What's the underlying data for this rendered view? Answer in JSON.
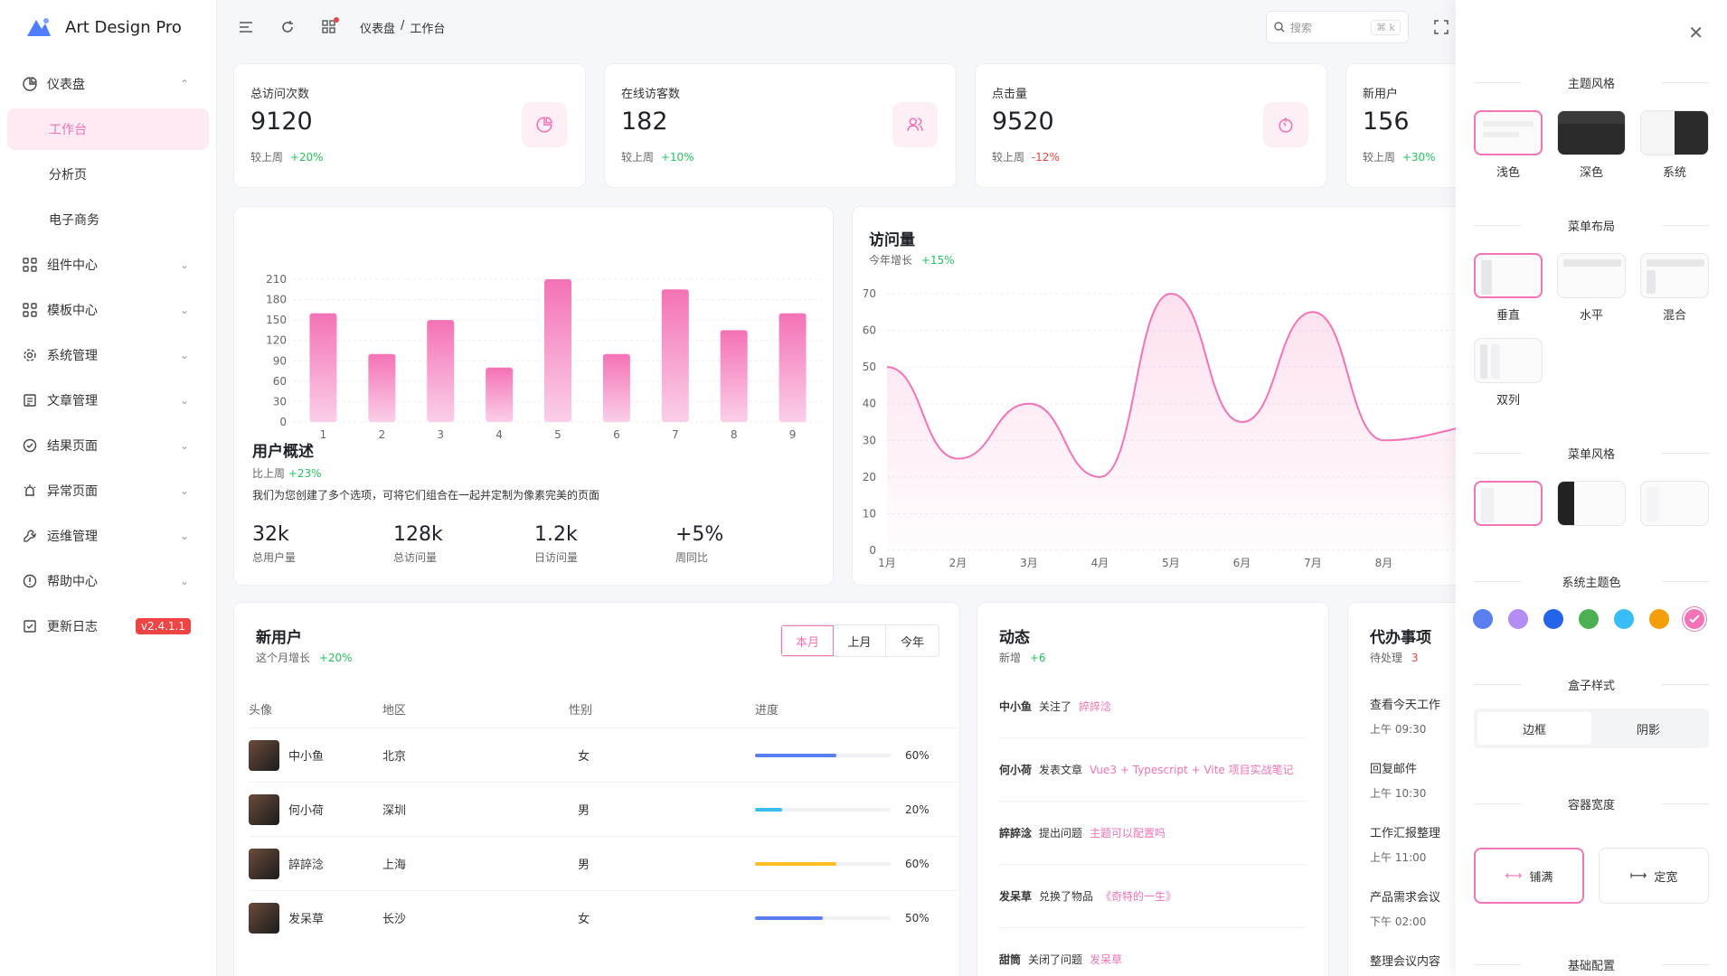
{
  "app": {
    "name": "Art Design Pro"
  },
  "sidebar": {
    "items": [
      {
        "label": "仪表盘",
        "icon": "dashboard-icon",
        "arrow": "⌃"
      },
      {
        "label": "工作台",
        "sub": true,
        "active": true
      },
      {
        "label": "分析页",
        "sub": true
      },
      {
        "label": "电子商务",
        "sub": true
      },
      {
        "label": "组件中心",
        "icon": "grid-icon",
        "arrow": "⌄"
      },
      {
        "label": "模板中心",
        "icon": "grid-icon",
        "arrow": "⌄"
      },
      {
        "label": "系统管理",
        "icon": "gear-icon",
        "arrow": "⌄"
      },
      {
        "label": "文章管理",
        "icon": "article-icon",
        "arrow": "⌄"
      },
      {
        "label": "结果页面",
        "icon": "check-circle-icon",
        "arrow": "⌄"
      },
      {
        "label": "异常页面",
        "icon": "alarm-icon",
        "arrow": "⌄"
      },
      {
        "label": "运维管理",
        "icon": "wrench-icon",
        "arrow": "⌄"
      },
      {
        "label": "帮助中心",
        "icon": "info-icon",
        "arrow": "⌄"
      },
      {
        "label": "更新日志",
        "icon": "log-icon",
        "badge": "v2.4.1.1"
      }
    ]
  },
  "topbar": {
    "breadcrumb": [
      "仪表盘",
      "/",
      "工作台"
    ],
    "search_placeholder": "搜索",
    "search_shortcut": "⌘ k"
  },
  "stats": [
    {
      "label": "总访问次数",
      "value": "9120",
      "foot": "较上周",
      "change": "+20%",
      "trend": "up"
    },
    {
      "label": "在线访客数",
      "value": "182",
      "foot": "较上周",
      "change": "+10%",
      "trend": "up"
    },
    {
      "label": "点击量",
      "value": "9520",
      "foot": "较上周",
      "change": "-12%",
      "trend": "down"
    },
    {
      "label": "新用户",
      "value": "156",
      "foot": "较上周",
      "change": "+30%",
      "trend": "up"
    }
  ],
  "overview": {
    "title": "用户概述",
    "compare_label": "比上周",
    "compare_value": "+23%",
    "desc": "我们为您创建了多个选项，可将它们组合在一起并定制为像素完美的页面",
    "metrics": [
      {
        "value": "32k",
        "label": "总用户量"
      },
      {
        "value": "128k",
        "label": "总访问量"
      },
      {
        "value": "1.2k",
        "label": "日访问量"
      },
      {
        "value": "+5%",
        "label": "周同比"
      }
    ]
  },
  "visits": {
    "title": "访问量",
    "sub_label": "今年增长",
    "sub_value": "+15%"
  },
  "chart_data": [
    {
      "type": "bar",
      "categories": [
        "1",
        "2",
        "3",
        "4",
        "5",
        "6",
        "7",
        "8",
        "9"
      ],
      "values": [
        160,
        100,
        150,
        80,
        210,
        100,
        195,
        135,
        160
      ],
      "yticks": [
        "0",
        "30",
        "60",
        "90",
        "120",
        "150",
        "180",
        "210"
      ],
      "ylim": [
        0,
        210
      ],
      "grid": true
    },
    {
      "type": "area",
      "categories": [
        "1月",
        "2月",
        "3月",
        "4月",
        "5月",
        "6月",
        "7月",
        "8月"
      ],
      "values": [
        50,
        25,
        40,
        20,
        70,
        35,
        65,
        30
      ],
      "yticks": [
        "0",
        "10",
        "20",
        "30",
        "40",
        "50",
        "60",
        "70"
      ],
      "ylim": [
        0,
        70
      ],
      "grid": true
    }
  ],
  "new_users": {
    "title": "新用户",
    "sub_label": "这个月增长",
    "sub_value": "+20%",
    "tabs": [
      "本月",
      "上月",
      "今年"
    ],
    "columns": [
      "头像",
      "地区",
      "性别",
      "进度"
    ],
    "rows": [
      {
        "name": "中小鱼",
        "region": "北京",
        "gender": "女",
        "progress": "60%",
        "pct": 0.6,
        "color": "#5b7ff0"
      },
      {
        "name": "何小荷",
        "region": "深圳",
        "gender": "男",
        "progress": "20%",
        "pct": 0.2,
        "color": "#38bdf8"
      },
      {
        "name": "誶誶淰",
        "region": "上海",
        "gender": "男",
        "progress": "60%",
        "pct": 0.6,
        "color": "#fbbf24"
      },
      {
        "name": "发呆草",
        "region": "长沙",
        "gender": "女",
        "progress": "50%",
        "pct": 0.5,
        "color": "#5b7ff0"
      }
    ]
  },
  "activity": {
    "title": "动态",
    "sub_label": "新增",
    "sub_value": "+6",
    "items": [
      {
        "user": "中小鱼",
        "action": "关注了",
        "target": "誶誶淰"
      },
      {
        "user": "何小荷",
        "action": "发表文章",
        "target": "Vue3 + Typescript + Vite 项目实战笔记"
      },
      {
        "user": "誶誶淰",
        "action": "提出问题",
        "target": "主题可以配置吗"
      },
      {
        "user": "发呆草",
        "action": "兑换了物品",
        "target": "《奇特的一生》"
      },
      {
        "user": "甜筒",
        "action": "关闭了问题",
        "target": "发呆草"
      }
    ]
  },
  "todo": {
    "title": "代办事项",
    "sub_label": "待处理",
    "sub_value": "3",
    "items": [
      {
        "title": "查看今天工作",
        "time": "上午 09:30"
      },
      {
        "title": "回复邮件",
        "time": "上午 10:30"
      },
      {
        "title": "工作汇报整理",
        "time": "上午 11:00"
      },
      {
        "title": "产品需求会议",
        "time": "下午 02:00"
      },
      {
        "title": "整理会议内容",
        "time": ""
      }
    ]
  },
  "settings": {
    "theme_title": "主题风格",
    "themes": [
      "浅色",
      "深色",
      "系统"
    ],
    "layout_title": "菜单布局",
    "layouts": [
      "垂直",
      "水平",
      "混合",
      "双列"
    ],
    "menu_style_title": "菜单风格",
    "color_title": "系统主题色",
    "colors": [
      "#5b7ff0",
      "#b38cf5",
      "#2563eb",
      "#4caf50",
      "#38bdf8",
      "#f59e0b",
      "#f472b6"
    ],
    "box_title": "盒子样式",
    "box_options": [
      "边框",
      "阴影"
    ],
    "width_title": "容器宽度",
    "width_options": [
      "铺满",
      "定宽"
    ],
    "base_title": "基础配置"
  }
}
